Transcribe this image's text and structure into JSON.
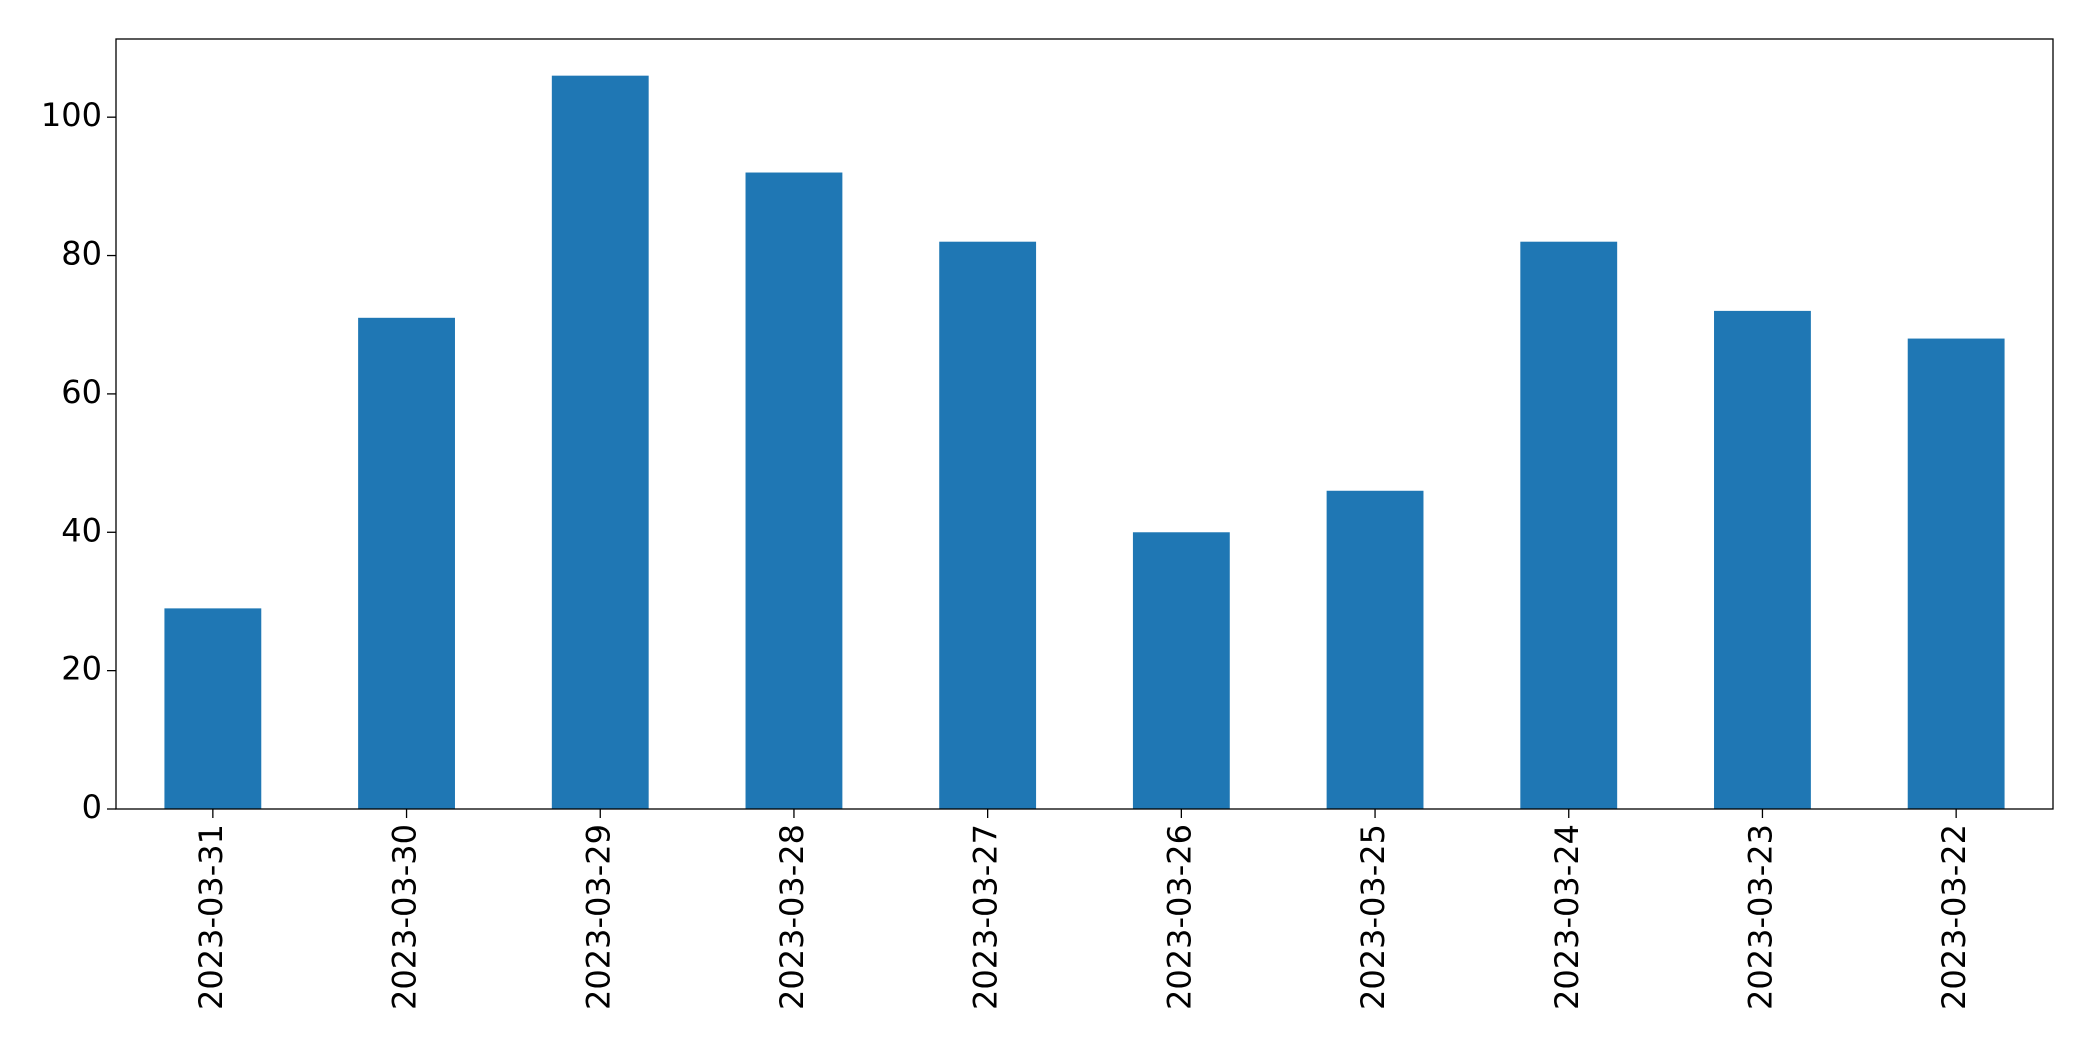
{
  "chart_data": {
    "type": "bar",
    "categories": [
      "2023-03-31",
      "2023-03-30",
      "2023-03-29",
      "2023-03-28",
      "2023-03-27",
      "2023-03-26",
      "2023-03-25",
      "2023-03-24",
      "2023-03-23",
      "2023-03-22"
    ],
    "values": [
      29,
      71,
      106,
      92,
      82,
      40,
      46,
      82,
      72,
      68
    ],
    "color": "#1f77b4",
    "ylim": [
      0,
      111.3
    ],
    "yticks": [
      0,
      20,
      40,
      60,
      80,
      100
    ],
    "grid": false
  }
}
